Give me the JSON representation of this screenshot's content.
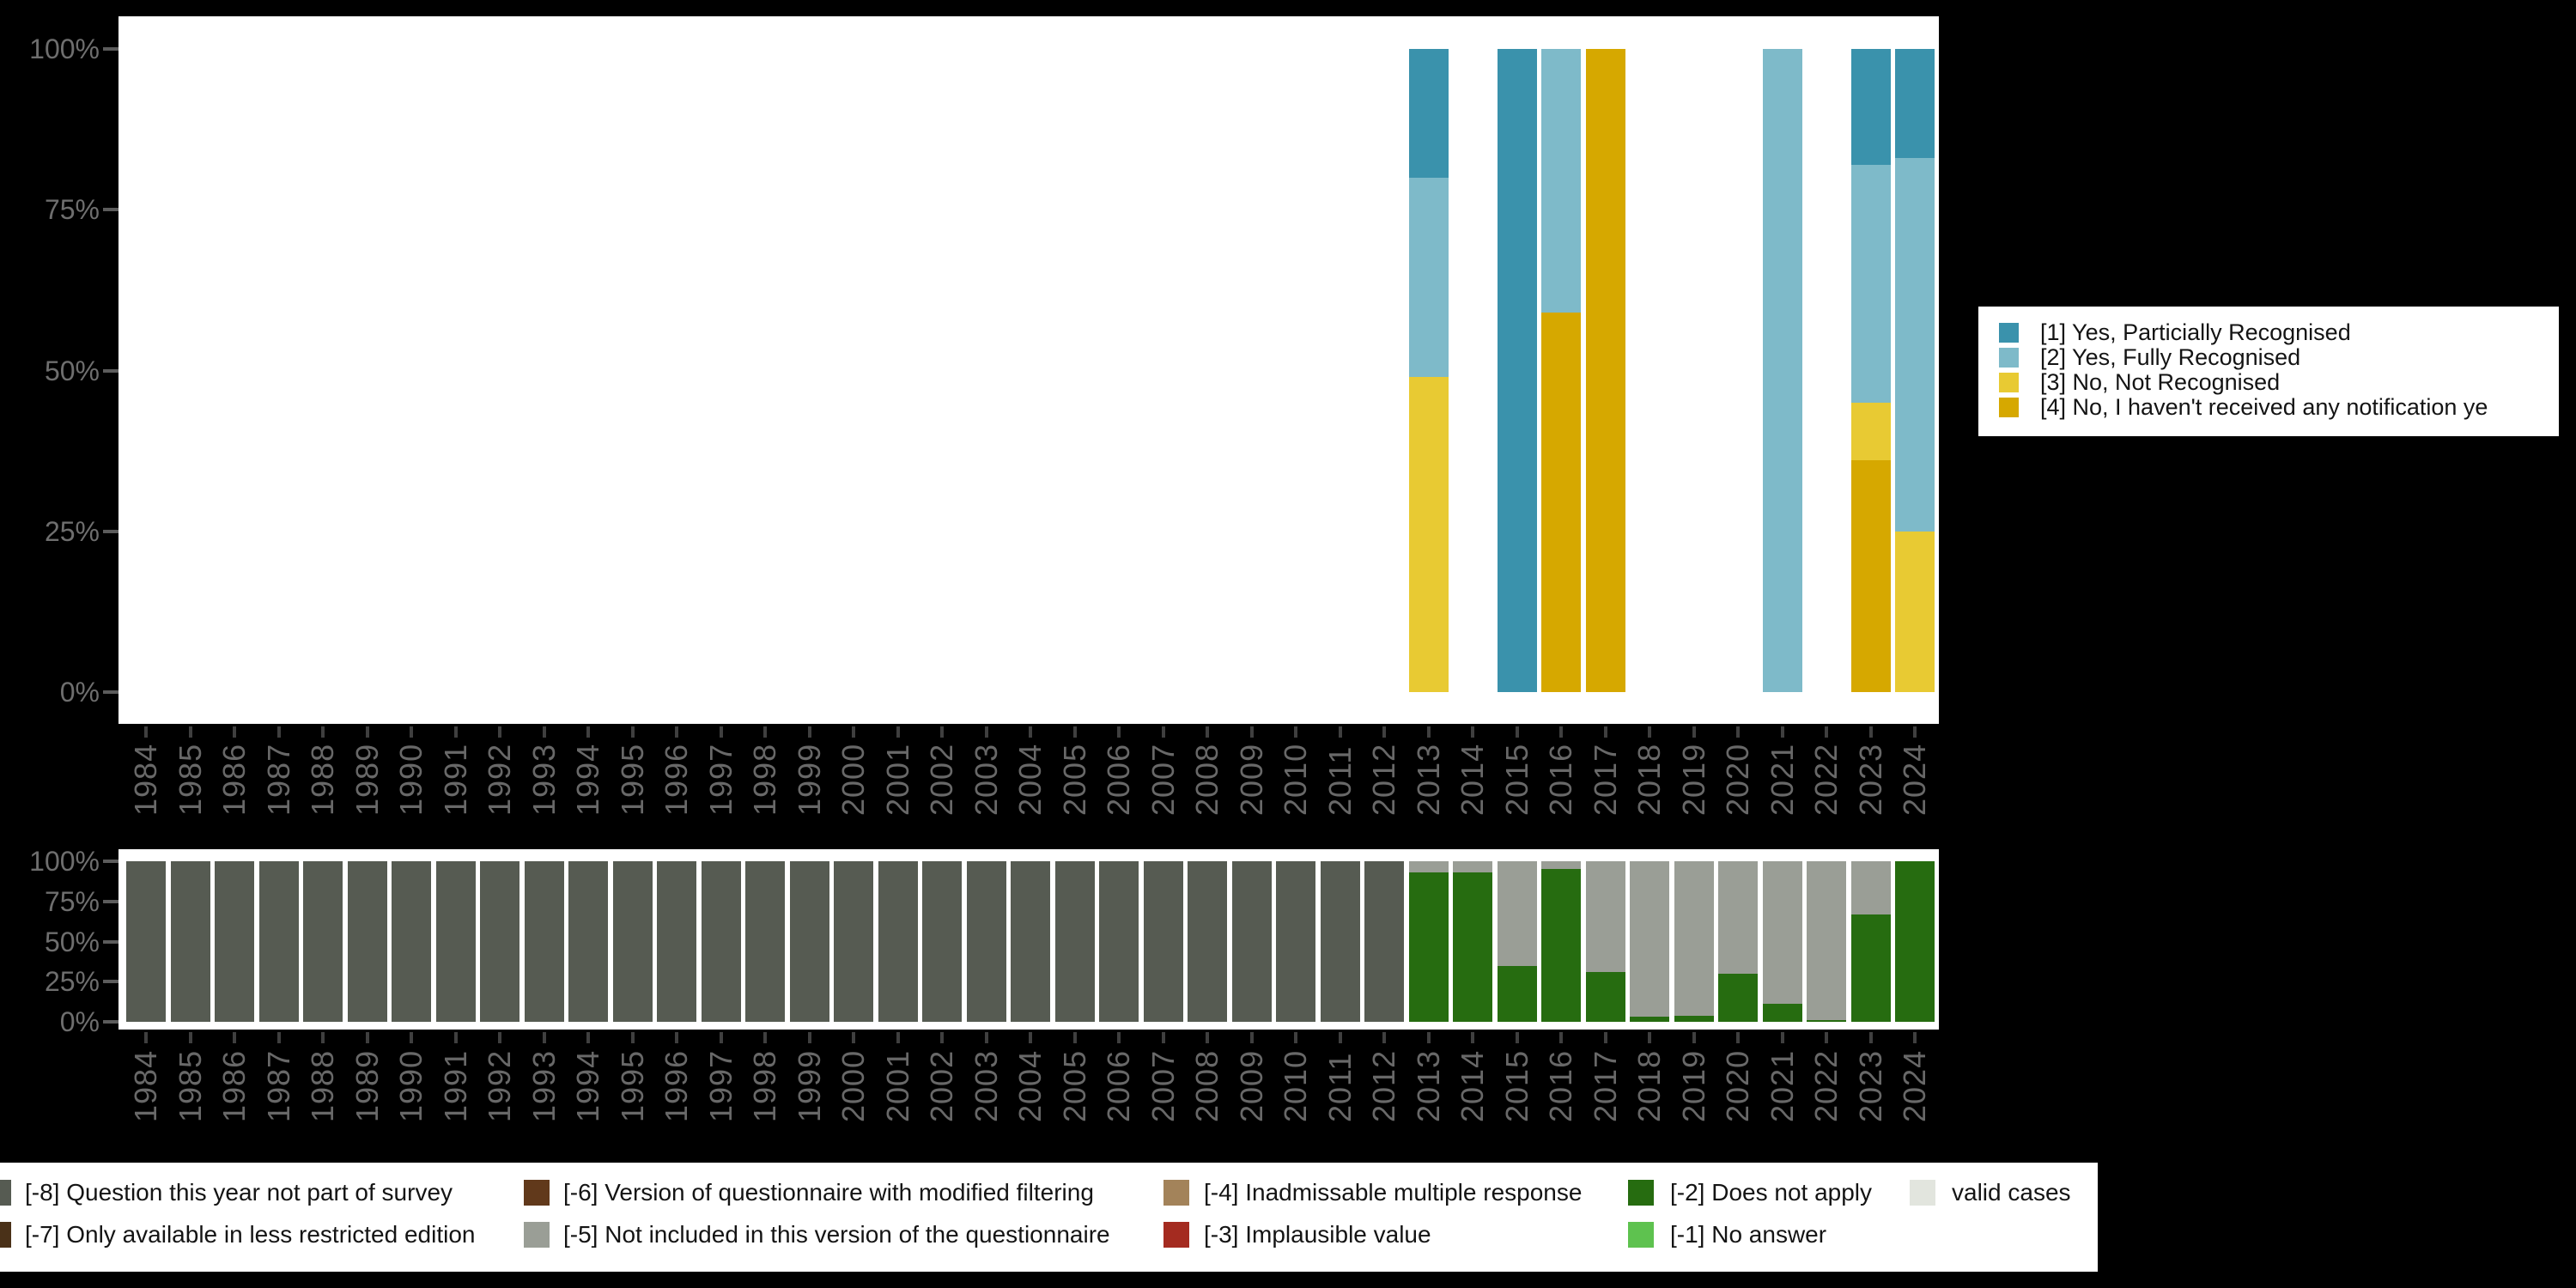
{
  "app": {
    "background": "#000000",
    "plot_background": "#ffffff"
  },
  "colors": {
    "cat1": "#3a92ac",
    "cat2": "#7ebac9",
    "cat3": "#e8ca33",
    "cat4": "#d6a800",
    "m8": "#565b52",
    "m7": "#4a3118",
    "m6": "#61391b",
    "m5": "#9a9e96",
    "m4": "#a3835a",
    "m3": "#a42b20",
    "m2": "#266c10",
    "m1": "#5ec24f",
    "valid": "#e2e5de",
    "axis_label_gray": "#6e6e6e",
    "year_label_gray": "#686868",
    "x_tick_gray": "#3f3f3f",
    "y_tick_gray": "#5c5c5c",
    "legend_text": "#141414"
  },
  "top_legend": {
    "items": [
      {
        "key": "cat1",
        "label": "[1] Yes, Particially Recognised"
      },
      {
        "key": "cat2",
        "label": "[2] Yes, Fully Recognised"
      },
      {
        "key": "cat3",
        "label": "[3] No, Not Recognised"
      },
      {
        "key": "cat4",
        "label": "[4] No, I haven't received any notification ye"
      }
    ]
  },
  "bottom_legend": {
    "items": [
      {
        "row": 1,
        "col": 1,
        "key": "m8",
        "label": "[-8] Question this year not part of survey"
      },
      {
        "row": 2,
        "col": 1,
        "key": "m7",
        "label": "[-7] Only available in less restricted edition"
      },
      {
        "row": 1,
        "col": 2,
        "key": "m6",
        "label": "[-6] Version of questionnaire with modified filtering"
      },
      {
        "row": 2,
        "col": 2,
        "key": "m5",
        "label": "[-5] Not included in this version of the questionnaire"
      },
      {
        "row": 1,
        "col": 3,
        "key": "m4",
        "label": "[-4] Inadmissable multiple response"
      },
      {
        "row": 2,
        "col": 3,
        "key": "m3",
        "label": "[-3] Implausible value"
      },
      {
        "row": 1,
        "col": 4,
        "key": "m2",
        "label": "[-2] Does not apply"
      },
      {
        "row": 2,
        "col": 4,
        "key": "m1",
        "label": "[-1] No answer"
      },
      {
        "row": 1,
        "col": 5,
        "key": "valid",
        "label": "valid cases"
      }
    ]
  },
  "chart_data": [
    {
      "type": "bar",
      "stacked": true,
      "orientation": "vertical",
      "title": "",
      "xlabel": "",
      "ylabel": "",
      "unit": "percent",
      "ylim": [
        0,
        100
      ],
      "y_ticks": [
        "100%",
        "75%",
        "50%",
        "25%",
        "0%"
      ],
      "grid": false,
      "legend_position": "right",
      "categories": [
        "1984",
        "1985",
        "1986",
        "1987",
        "1988",
        "1989",
        "1990",
        "1991",
        "1992",
        "1993",
        "1994",
        "1995",
        "1996",
        "1997",
        "1998",
        "1999",
        "2000",
        "2001",
        "2002",
        "2003",
        "2004",
        "2005",
        "2006",
        "2007",
        "2008",
        "2009",
        "2010",
        "2011",
        "2012",
        "2013",
        "2014",
        "2015",
        "2016",
        "2017",
        "2018",
        "2019",
        "2020",
        "2021",
        "2022",
        "2023",
        "2024"
      ],
      "stack_order_top_to_bottom": [
        "cat1",
        "cat2",
        "cat3",
        "cat4"
      ],
      "series": [
        {
          "key": "cat1",
          "name": "[1] Yes, Particially Recognised",
          "color": "#3a92ac"
        },
        {
          "key": "cat2",
          "name": "[2] Yes, Fully Recognised",
          "color": "#7ebac9"
        },
        {
          "key": "cat3",
          "name": "[3] No, Not Recognised",
          "color": "#e8ca33"
        },
        {
          "key": "cat4",
          "name": "[4] No, I haven't received any notification ye",
          "color": "#d6a800"
        }
      ],
      "bars": {
        "2013": {
          "cat1": 20,
          "cat2": 31,
          "cat3": 49
        },
        "2015": {
          "cat1": 100
        },
        "2016": {
          "cat2": 41,
          "cat4": 59
        },
        "2017": {
          "cat4": 100
        },
        "2021": {
          "cat2": 100
        },
        "2023": {
          "cat1": 18,
          "cat2": 37,
          "cat3": 9,
          "cat4": 36
        },
        "2024": {
          "cat1": 17,
          "cat2": 58,
          "cat3": 25
        }
      }
    },
    {
      "type": "bar",
      "stacked": true,
      "orientation": "vertical",
      "title": "",
      "xlabel": "",
      "ylabel": "",
      "unit": "percent",
      "ylim": [
        0,
        100
      ],
      "y_ticks": [
        "100%",
        "75%",
        "50%",
        "25%",
        "0%"
      ],
      "grid": false,
      "legend_position": "bottom",
      "categories": [
        "1984",
        "1985",
        "1986",
        "1987",
        "1988",
        "1989",
        "1990",
        "1991",
        "1992",
        "1993",
        "1994",
        "1995",
        "1996",
        "1997",
        "1998",
        "1999",
        "2000",
        "2001",
        "2002",
        "2003",
        "2004",
        "2005",
        "2006",
        "2007",
        "2008",
        "2009",
        "2010",
        "2011",
        "2012",
        "2013",
        "2014",
        "2015",
        "2016",
        "2017",
        "2018",
        "2019",
        "2020",
        "2021",
        "2022",
        "2023",
        "2024"
      ],
      "stack_order_top_to_bottom": [
        "m8",
        "m5",
        "m2"
      ],
      "series": [
        {
          "key": "m8",
          "name": "[-8] Question this year not part of survey",
          "color": "#565b52"
        },
        {
          "key": "m5",
          "name": "[-5] Not included in this version of the questionnaire",
          "color": "#9a9e96"
        },
        {
          "key": "m2",
          "name": "[-2] Does not apply",
          "color": "#266c10"
        }
      ],
      "bars": {
        "1984": {
          "m8": 100
        },
        "1985": {
          "m8": 100
        },
        "1986": {
          "m8": 100
        },
        "1987": {
          "m8": 100
        },
        "1988": {
          "m8": 100
        },
        "1989": {
          "m8": 100
        },
        "1990": {
          "m8": 100
        },
        "1991": {
          "m8": 100
        },
        "1992": {
          "m8": 100
        },
        "1993": {
          "m8": 100
        },
        "1994": {
          "m8": 100
        },
        "1995": {
          "m8": 100
        },
        "1996": {
          "m8": 100
        },
        "1997": {
          "m8": 100
        },
        "1998": {
          "m8": 100
        },
        "1999": {
          "m8": 100
        },
        "2000": {
          "m8": 100
        },
        "2001": {
          "m8": 100
        },
        "2002": {
          "m8": 100
        },
        "2003": {
          "m8": 100
        },
        "2004": {
          "m8": 100
        },
        "2005": {
          "m8": 100
        },
        "2006": {
          "m8": 100
        },
        "2007": {
          "m8": 100
        },
        "2008": {
          "m8": 100
        },
        "2009": {
          "m8": 100
        },
        "2010": {
          "m8": 100
        },
        "2011": {
          "m8": 100
        },
        "2012": {
          "m8": 100
        },
        "2013": {
          "m5": 7,
          "m2": 93
        },
        "2014": {
          "m5": 7,
          "m2": 93
        },
        "2015": {
          "m5": 65,
          "m2": 35
        },
        "2016": {
          "m5": 5,
          "m2": 95
        },
        "2017": {
          "m5": 69,
          "m2": 31
        },
        "2018": {
          "m5": 97,
          "m2": 3
        },
        "2019": {
          "m5": 96,
          "m2": 4
        },
        "2020": {
          "m5": 70,
          "m2": 30
        },
        "2021": {
          "m5": 89,
          "m2": 11
        },
        "2022": {
          "m5": 99,
          "m2": 1
        },
        "2023": {
          "m5": 33,
          "m2": 67
        },
        "2024": {
          "m2": 100
        }
      }
    }
  ]
}
